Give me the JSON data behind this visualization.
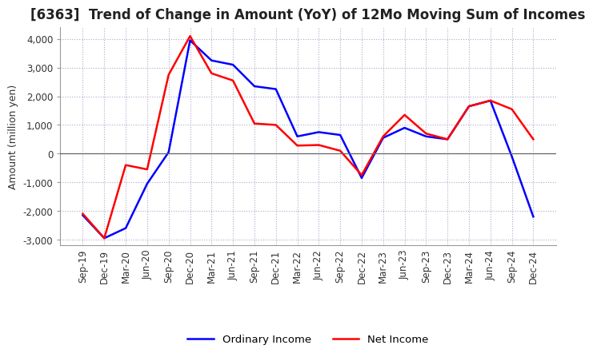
{
  "title": "[6363]  Trend of Change in Amount (YoY) of 12Mo Moving Sum of Incomes",
  "ylabel": "Amount (million yen)",
  "x_labels": [
    "Sep-19",
    "Dec-19",
    "Mar-20",
    "Jun-20",
    "Sep-20",
    "Dec-20",
    "Mar-21",
    "Jun-21",
    "Sep-21",
    "Dec-21",
    "Mar-22",
    "Jun-22",
    "Sep-22",
    "Dec-22",
    "Mar-23",
    "Jun-23",
    "Sep-23",
    "Dec-23",
    "Mar-24",
    "Jun-24",
    "Sep-24",
    "Dec-24"
  ],
  "ordinary_income": [
    -2150,
    -2950,
    -2600,
    -1050,
    50,
    3950,
    3250,
    3100,
    2350,
    2250,
    600,
    750,
    650,
    -850,
    550,
    900,
    600,
    500,
    1650,
    1850,
    -100,
    -2200
  ],
  "net_income": [
    -2100,
    -2950,
    -400,
    -550,
    2750,
    4100,
    2800,
    2550,
    1050,
    1000,
    280,
    300,
    100,
    -750,
    600,
    1350,
    700,
    500,
    1650,
    1850,
    1550,
    500
  ],
  "ordinary_income_color": "#0000ff",
  "net_income_color": "#ff0000",
  "ylim": [
    -3200,
    4400
  ],
  "yticks": [
    -3000,
    -2000,
    -1000,
    0,
    1000,
    2000,
    3000,
    4000
  ],
  "background_color": "#ffffff",
  "grid_color": "#aaaacc",
  "line_width": 1.8,
  "legend_ordinary": "Ordinary Income",
  "legend_net": "Net Income",
  "title_fontsize": 12,
  "axis_fontsize": 9,
  "tick_fontsize": 8.5
}
